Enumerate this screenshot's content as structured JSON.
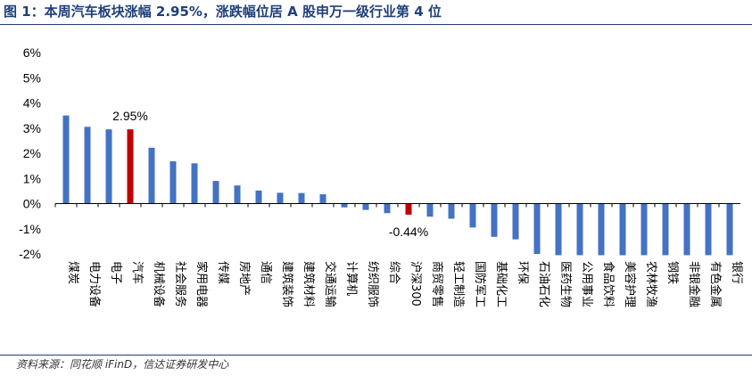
{
  "header": {
    "title": "图 1：本周汽车板块涨幅 2.95%，涨跌幅位居 A 股申万一级行业第 4 位"
  },
  "footer": {
    "source": "资料来源：同花顺 iFinD，信达证券研发中心"
  },
  "colors": {
    "default_bar": "#4472c4",
    "highlight_bar": "#c00000",
    "title": "#1f3f7a"
  },
  "chart_data": {
    "type": "bar",
    "title": "",
    "xlabel": "",
    "ylabel": "",
    "ylim": [
      -2,
      6
    ],
    "yticks": [
      "-2%",
      "-1%",
      "0%",
      "1%",
      "2%",
      "3%",
      "4%",
      "5%",
      "6%"
    ],
    "ytick_values": [
      -2,
      -1,
      0,
      1,
      2,
      3,
      4,
      5,
      6
    ],
    "categories": [
      "煤炭",
      "电力设备",
      "电子",
      "汽车",
      "机械设备",
      "社会服务",
      "家用电器",
      "传媒",
      "房地产",
      "通信",
      "建筑装饰",
      "建筑材料",
      "交通运输",
      "计算机",
      "纺织服饰",
      "综合",
      "沪深300",
      "商贸零售",
      "轻工制造",
      "国防军工",
      "基础化工",
      "环保",
      "石油石化",
      "医药生物",
      "公用事业",
      "食品饮料",
      "美容护理",
      "农林牧渔",
      "钢铁",
      "非银金融",
      "有色金属",
      "银行"
    ],
    "values": [
      3.5,
      3.05,
      2.95,
      2.95,
      2.22,
      1.68,
      1.6,
      0.9,
      0.72,
      0.52,
      0.43,
      0.42,
      0.37,
      -0.15,
      -0.25,
      -0.38,
      -0.44,
      -0.52,
      -0.6,
      -0.95,
      -1.32,
      -1.42,
      -2.0,
      -2.05,
      -2.05,
      -2.05,
      -2.05,
      -2.05,
      -2.05,
      -2.05,
      -2.05,
      -2.05
    ],
    "highlight": [
      "汽车",
      "沪深300"
    ],
    "data_labels": [
      {
        "category": "汽车",
        "text": "2.95%"
      },
      {
        "category": "沪深300",
        "text": "-0.44%"
      }
    ],
    "grid": false,
    "legend": "none"
  }
}
